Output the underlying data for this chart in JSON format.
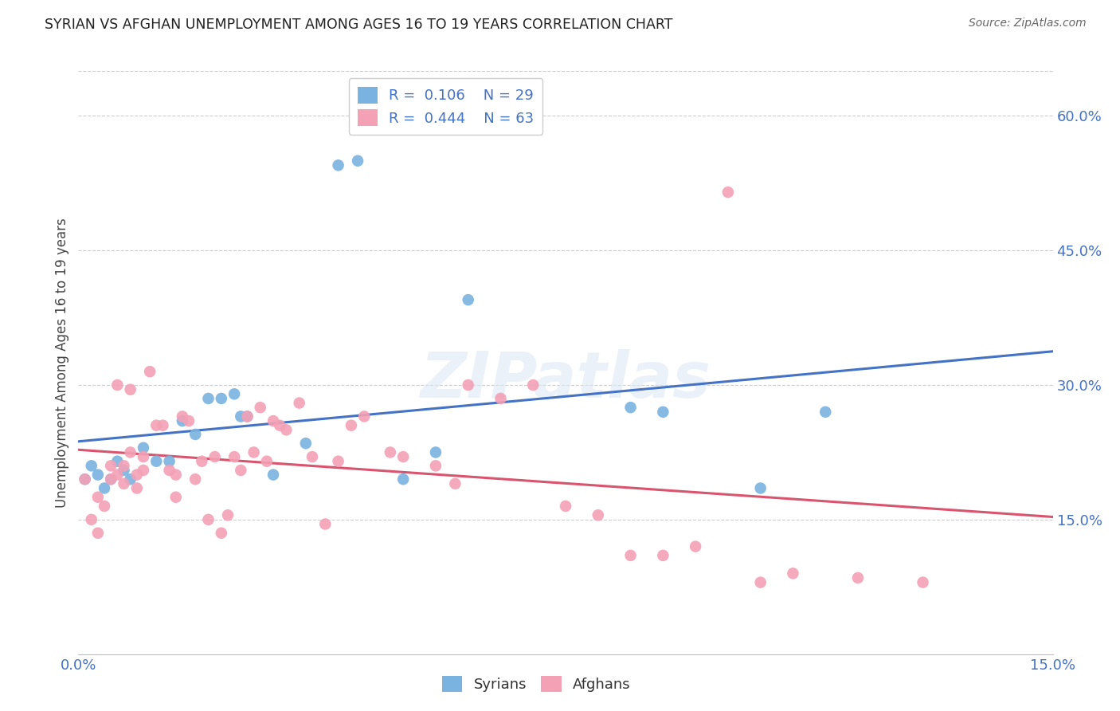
{
  "title": "SYRIAN VS AFGHAN UNEMPLOYMENT AMONG AGES 16 TO 19 YEARS CORRELATION CHART",
  "source": "Source: ZipAtlas.com",
  "ylabel": "Unemployment Among Ages 16 to 19 years",
  "xlim": [
    0.0,
    0.15
  ],
  "ylim": [
    0.0,
    0.65
  ],
  "ytick_vals": [
    0.15,
    0.3,
    0.45,
    0.6
  ],
  "ytick_labels": [
    "15.0%",
    "30.0%",
    "45.0%",
    "60.0%"
  ],
  "xtick_vals": [
    0.0,
    0.03,
    0.06,
    0.09,
    0.12,
    0.15
  ],
  "xtick_labels": [
    "0.0%",
    "",
    "",
    "",
    "",
    "15.0%"
  ],
  "watermark": "ZIPatlas",
  "syrian_color": "#7ab3e0",
  "afghan_color": "#f4a0b5",
  "syrian_line_color": "#4472c4",
  "afghan_line_color": "#d9546e",
  "legend_R_syrian": "0.106",
  "legend_N_syrian": "29",
  "legend_R_afghan": "0.444",
  "legend_N_afghan": "63",
  "syrian_x": [
    0.001,
    0.002,
    0.003,
    0.004,
    0.005,
    0.006,
    0.007,
    0.008,
    0.01,
    0.012,
    0.014,
    0.016,
    0.018,
    0.02,
    0.022,
    0.024,
    0.025,
    0.026,
    0.03,
    0.035,
    0.04,
    0.043,
    0.05,
    0.055,
    0.06,
    0.085,
    0.09,
    0.105,
    0.115
  ],
  "syrian_y": [
    0.195,
    0.21,
    0.2,
    0.185,
    0.195,
    0.215,
    0.205,
    0.195,
    0.23,
    0.215,
    0.215,
    0.26,
    0.245,
    0.285,
    0.285,
    0.29,
    0.265,
    0.265,
    0.2,
    0.235,
    0.545,
    0.55,
    0.195,
    0.225,
    0.395,
    0.275,
    0.27,
    0.185,
    0.27
  ],
  "afghan_x": [
    0.001,
    0.002,
    0.003,
    0.003,
    0.004,
    0.005,
    0.005,
    0.006,
    0.006,
    0.007,
    0.007,
    0.008,
    0.008,
    0.009,
    0.009,
    0.01,
    0.01,
    0.011,
    0.012,
    0.013,
    0.014,
    0.015,
    0.015,
    0.016,
    0.017,
    0.018,
    0.019,
    0.02,
    0.021,
    0.022,
    0.023,
    0.024,
    0.025,
    0.026,
    0.027,
    0.028,
    0.029,
    0.03,
    0.031,
    0.032,
    0.034,
    0.036,
    0.038,
    0.04,
    0.042,
    0.044,
    0.048,
    0.05,
    0.055,
    0.058,
    0.06,
    0.065,
    0.07,
    0.075,
    0.08,
    0.085,
    0.09,
    0.095,
    0.1,
    0.105,
    0.11,
    0.12,
    0.13
  ],
  "afghan_y": [
    0.195,
    0.15,
    0.175,
    0.135,
    0.165,
    0.21,
    0.195,
    0.2,
    0.3,
    0.19,
    0.21,
    0.225,
    0.295,
    0.2,
    0.185,
    0.205,
    0.22,
    0.315,
    0.255,
    0.255,
    0.205,
    0.2,
    0.175,
    0.265,
    0.26,
    0.195,
    0.215,
    0.15,
    0.22,
    0.135,
    0.155,
    0.22,
    0.205,
    0.265,
    0.225,
    0.275,
    0.215,
    0.26,
    0.255,
    0.25,
    0.28,
    0.22,
    0.145,
    0.215,
    0.255,
    0.265,
    0.225,
    0.22,
    0.21,
    0.19,
    0.3,
    0.285,
    0.3,
    0.165,
    0.155,
    0.11,
    0.11,
    0.12,
    0.515,
    0.08,
    0.09,
    0.085,
    0.08
  ]
}
